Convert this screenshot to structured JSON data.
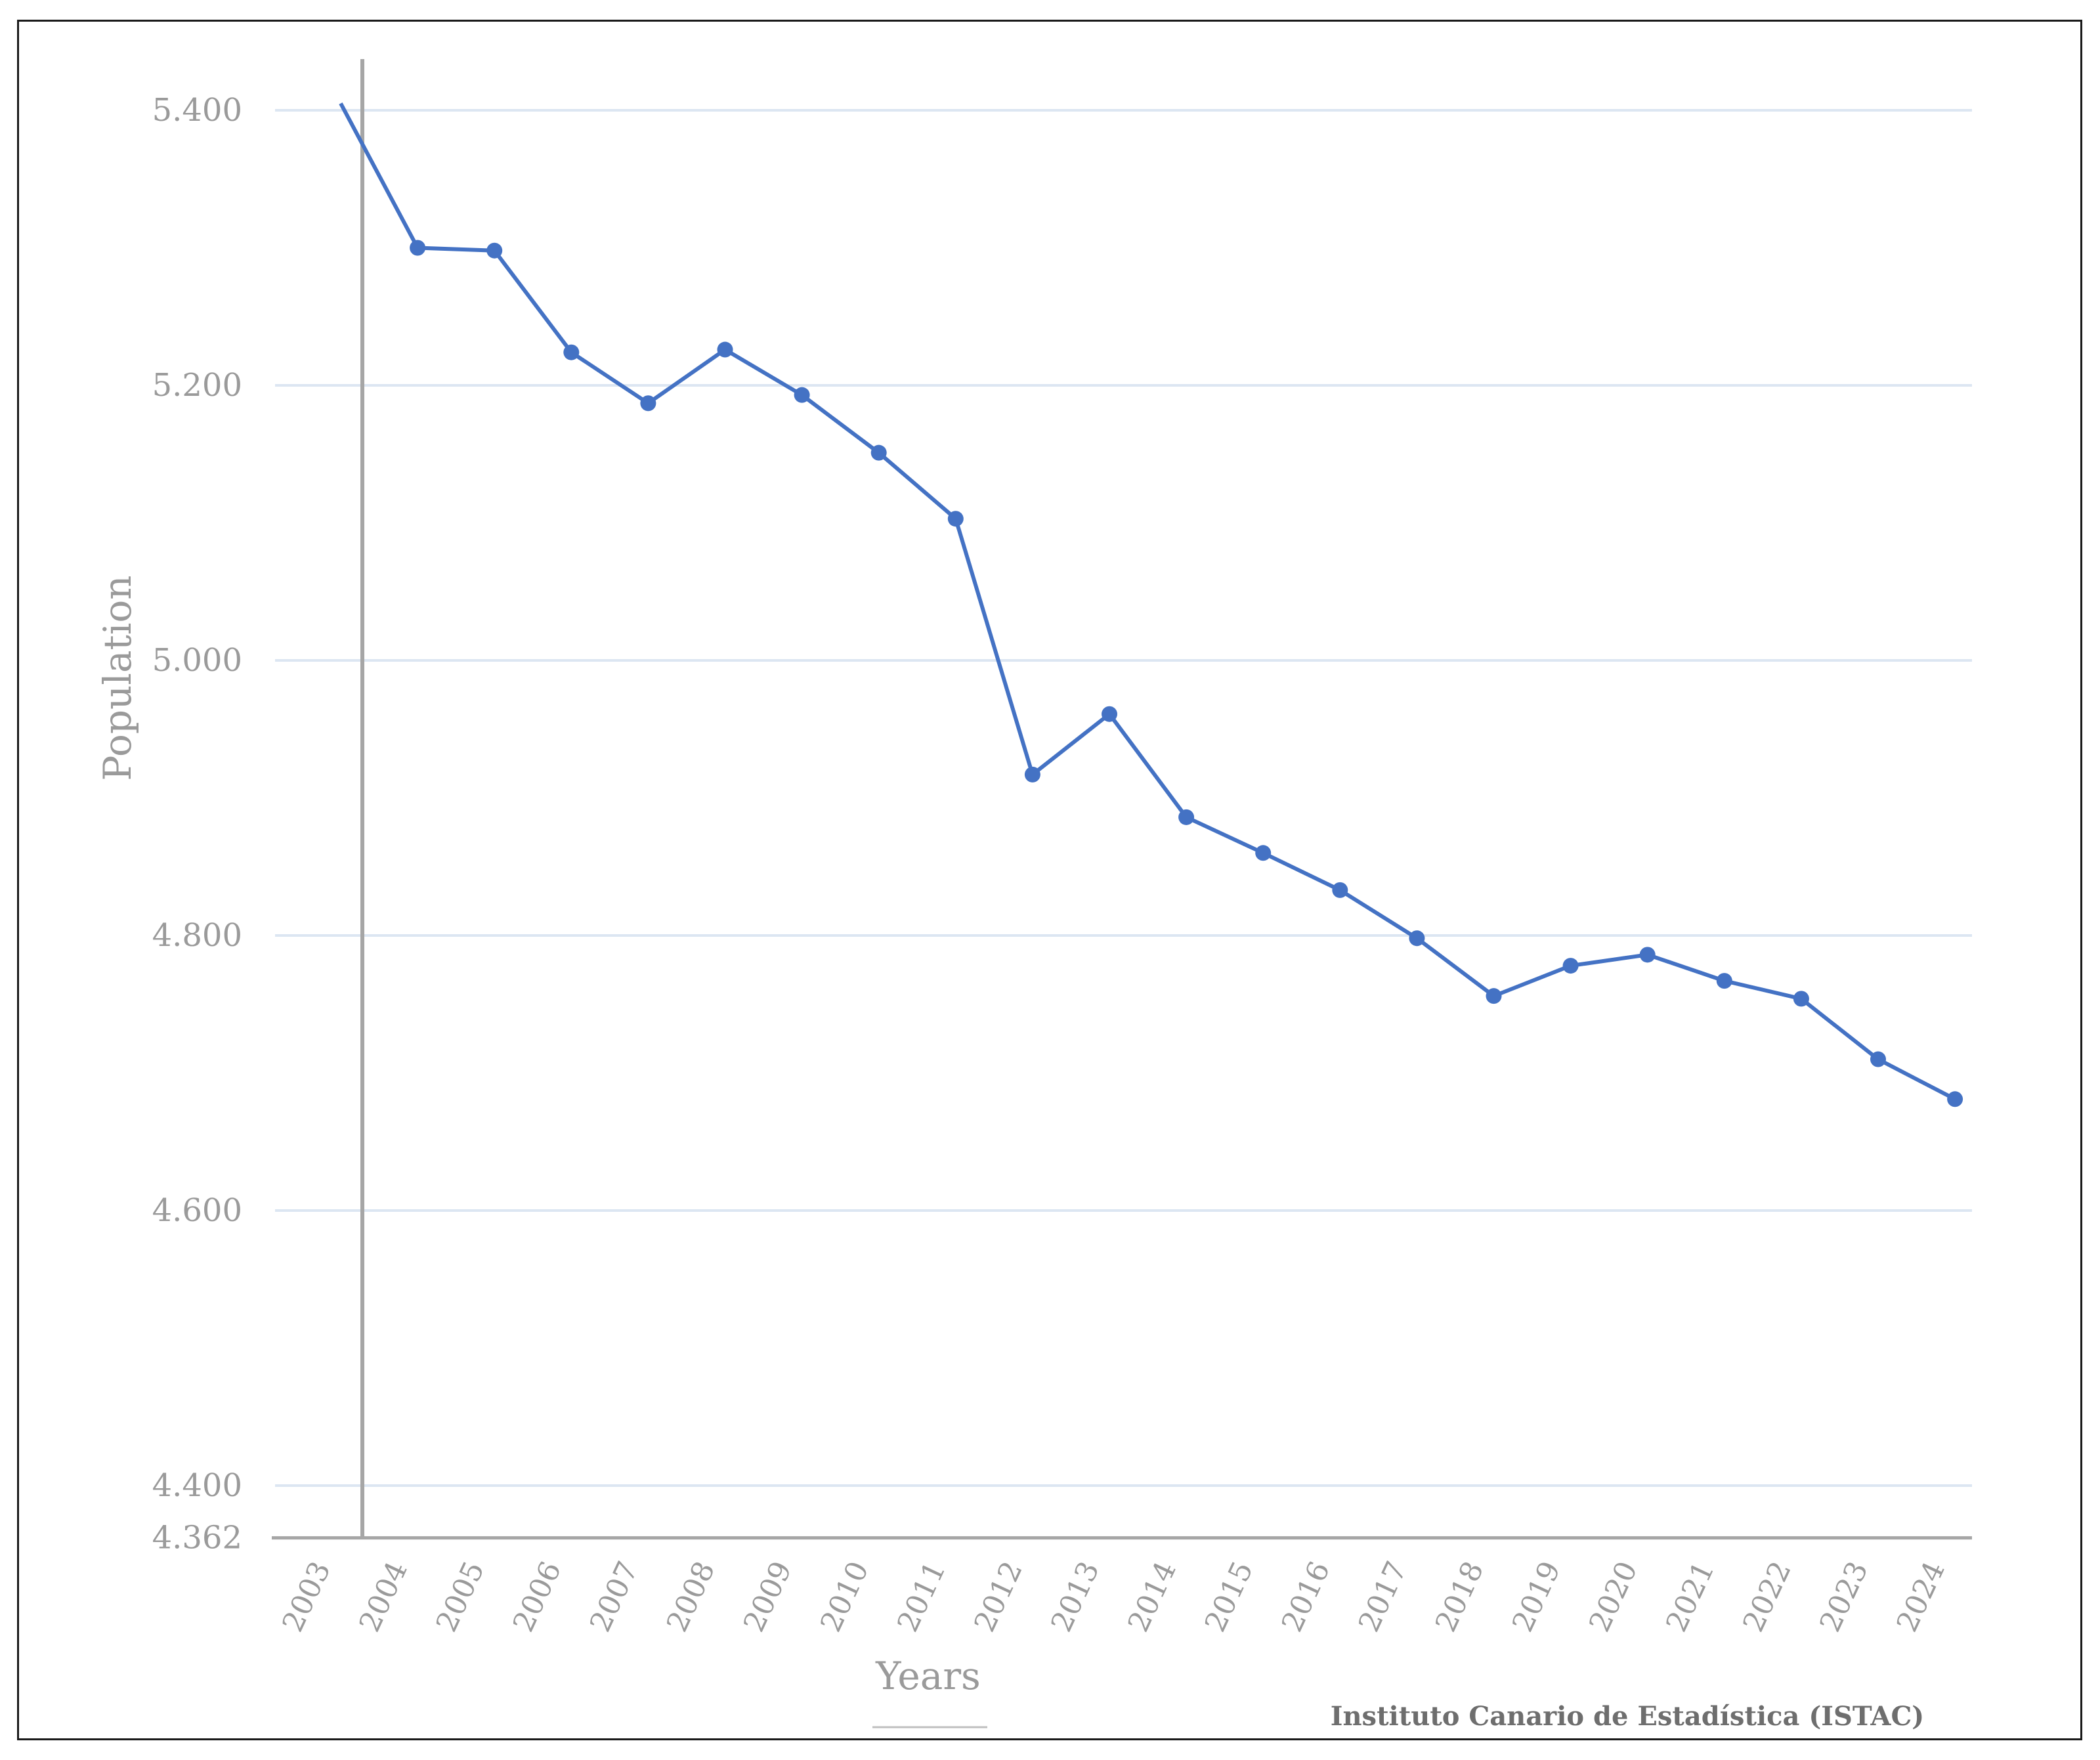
{
  "chart_data": {
    "type": "line",
    "xlabel": "Years",
    "ylabel": "Population",
    "source": "Instituto Canario de Estadística (ISTAC)",
    "ylim": [
      4362,
      5420
    ],
    "yticks": [
      {
        "value": 5400,
        "label": "5.400"
      },
      {
        "value": 5200,
        "label": "5.200"
      },
      {
        "value": 5000,
        "label": "5.000"
      },
      {
        "value": 4800,
        "label": "4.800"
      },
      {
        "value": 4600,
        "label": "4.600"
      },
      {
        "value": 4400,
        "label": "4.400"
      },
      {
        "value": 4362,
        "label": "4.362"
      }
    ],
    "categories": [
      "2003",
      "2004",
      "2005",
      "2006",
      "2007",
      "2008",
      "2009",
      "2010",
      "2011",
      "2012",
      "2013",
      "2014",
      "2015",
      "2016",
      "2017",
      "2018",
      "2019",
      "2020",
      "2021",
      "2022",
      "2023",
      "2024"
    ],
    "series": [
      {
        "color": "#4472c4",
        "values": [
          5405,
          5300,
          5298,
          5224,
          5187,
          5226,
          5193,
          5151,
          5103,
          4917,
          4961,
          4886,
          4860,
          4833,
          4798,
          4756,
          4778,
          4786,
          4767,
          4754,
          4710,
          4681
        ],
        "markers": [
          false,
          true,
          true,
          true,
          true,
          true,
          true,
          true,
          true,
          true,
          true,
          true,
          true,
          true,
          true,
          true,
          true,
          true,
          true,
          true,
          true,
          true
        ]
      }
    ],
    "grid": true,
    "colors": {
      "grid": "#dce6f2",
      "axis": "#a6a6a6",
      "line": "#4472c4",
      "text": "#9a9a9a"
    }
  }
}
